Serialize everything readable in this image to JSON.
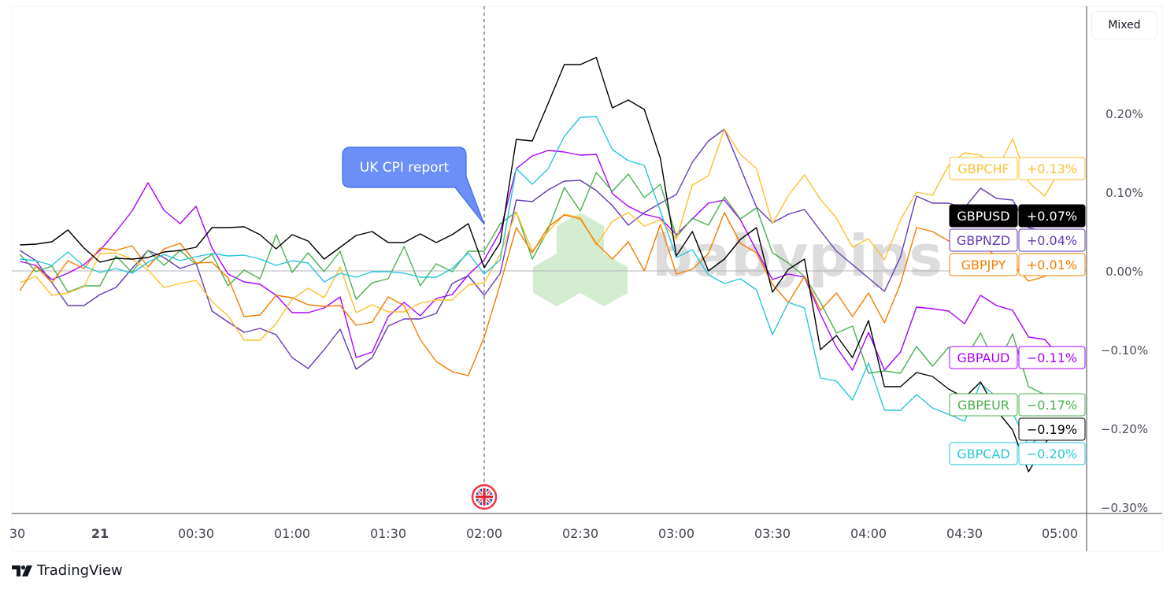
{
  "toolbar": {
    "scale_mode_label": "Mixed"
  },
  "branding": {
    "tradingview_label": "TradingView",
    "watermark": "babypips"
  },
  "annotation": {
    "label": "UK CPI report",
    "event_time": "02:00",
    "event_icon": "uk-flag-icon"
  },
  "chart_data": {
    "type": "line",
    "title": "",
    "xlabel": "",
    "ylabel": "",
    "ylim": [
      -0.31,
      0.34
    ],
    "y_unit": "%",
    "grid": false,
    "legend": "right-edge labels",
    "x_tick_labels": [
      "30",
      "21",
      "00:30",
      "01:00",
      "01:30",
      "02:00",
      "02:30",
      "03:00",
      "03:30",
      "04:00",
      "04:30",
      "05:00"
    ],
    "y_tick_labels": [
      "0.20%",
      "0.10%",
      "0.00%",
      "−0.10%",
      "−0.20%",
      "−0.30%"
    ],
    "y_ticks": [
      0.2,
      0.1,
      0.0,
      -0.1,
      -0.2,
      -0.3
    ],
    "x": [
      "23:35",
      "23:40",
      "23:45",
      "23:50",
      "23:55",
      "00:00",
      "00:05",
      "00:10",
      "00:15",
      "00:20",
      "00:25",
      "00:30",
      "00:35",
      "00:40",
      "00:45",
      "00:50",
      "00:55",
      "01:00",
      "01:05",
      "01:10",
      "01:15",
      "01:20",
      "01:25",
      "01:30",
      "01:35",
      "01:40",
      "01:45",
      "01:50",
      "01:55",
      "02:00",
      "02:05",
      "02:10",
      "02:15",
      "02:20",
      "02:25",
      "02:30",
      "02:35",
      "02:40",
      "02:45",
      "02:50",
      "02:55",
      "03:00",
      "03:05",
      "03:10",
      "03:15",
      "03:20",
      "03:25",
      "03:30",
      "03:35",
      "03:40",
      "03:45",
      "03:50",
      "03:55",
      "04:00",
      "04:05",
      "04:10",
      "04:15",
      "04:20",
      "04:25",
      "04:30",
      "04:35",
      "04:40",
      "04:45",
      "04:50",
      "04:55",
      "05:00"
    ],
    "series": [
      {
        "name": "GBPAUD",
        "color": "#aa00ff",
        "last_label": "−0.11%",
        "values": [
          0.012,
          0.007,
          -0.011,
          -0.003,
          0.008,
          0.026,
          0.05,
          0.076,
          0.112,
          0.077,
          0.06,
          0.082,
          0.029,
          -0.004,
          -0.014,
          -0.017,
          -0.031,
          -0.053,
          -0.053,
          -0.047,
          -0.033,
          -0.11,
          -0.103,
          -0.058,
          -0.04,
          -0.057,
          -0.035,
          -0.03,
          -0.005,
          0.014,
          0.05,
          0.13,
          0.146,
          0.153,
          0.151,
          0.147,
          0.148,
          0.098,
          0.082,
          0.072,
          0.067,
          0.046,
          0.066,
          0.086,
          0.09,
          0.065,
          0.026,
          -0.011,
          -0.004,
          -0.008,
          -0.055,
          -0.097,
          -0.126,
          -0.078,
          -0.126,
          -0.103,
          -0.046,
          -0.048,
          -0.051,
          -0.067,
          -0.031,
          -0.044,
          -0.05,
          -0.084,
          -0.087,
          -0.11
        ]
      },
      {
        "name": "GBPNZD",
        "color": "#673ab7",
        "last_label": "+0.04%",
        "values": [
          0.026,
          0.013,
          -0.015,
          -0.044,
          -0.044,
          -0.03,
          -0.021,
          0.003,
          0.026,
          0.017,
          0.003,
          0.01,
          -0.051,
          -0.065,
          -0.078,
          -0.073,
          -0.081,
          -0.11,
          -0.124,
          -0.1,
          -0.074,
          -0.125,
          -0.11,
          -0.07,
          -0.061,
          -0.061,
          -0.054,
          -0.016,
          -0.006,
          -0.031,
          -0.003,
          0.09,
          0.088,
          0.103,
          0.114,
          0.115,
          0.102,
          0.083,
          0.058,
          0.074,
          0.086,
          0.097,
          0.138,
          0.165,
          0.18,
          0.131,
          0.081,
          0.061,
          0.072,
          0.078,
          0.051,
          0.025,
          0.008,
          -0.009,
          -0.026,
          0.018,
          0.095,
          0.086,
          0.086,
          0.08,
          0.105,
          0.092,
          0.09,
          0.055,
          0.05,
          0.04
        ]
      },
      {
        "name": "GBPEUR",
        "color": "#4caf50",
        "last_label": "−0.17%",
        "values": [
          0.021,
          -0.001,
          0.006,
          -0.027,
          -0.019,
          -0.019,
          0.019,
          -0.002,
          0.026,
          0.007,
          0.026,
          0.008,
          0.021,
          -0.019,
          0.001,
          -0.01,
          0.046,
          -0.002,
          0.023,
          -0.001,
          0.025,
          -0.036,
          -0.015,
          -0.01,
          0.031,
          -0.019,
          0.009,
          -0.001,
          0.025,
          0.025,
          0.06,
          0.075,
          0.015,
          0.053,
          0.106,
          0.076,
          0.125,
          0.101,
          0.123,
          0.093,
          0.11,
          0.043,
          0.067,
          0.058,
          0.094,
          0.066,
          0.08,
          0.023,
          0.01,
          -0.007,
          -0.04,
          -0.079,
          -0.07,
          -0.13,
          -0.127,
          -0.13,
          -0.096,
          -0.121,
          -0.097,
          -0.113,
          -0.079,
          -0.121,
          -0.08,
          -0.147,
          -0.157,
          -0.17
        ]
      },
      {
        "name": "GBPCHF",
        "color": "#fbc02d",
        "last_label": "+0.13%",
        "values": [
          -0.015,
          -0.007,
          -0.031,
          -0.028,
          -0.02,
          0.022,
          0.023,
          0.015,
          0.001,
          -0.021,
          -0.016,
          -0.012,
          -0.039,
          -0.057,
          -0.088,
          -0.088,
          -0.067,
          -0.036,
          -0.022,
          -0.034,
          0.005,
          -0.053,
          -0.043,
          -0.052,
          -0.052,
          -0.041,
          -0.037,
          -0.037,
          -0.018,
          -0.015,
          0.021,
          0.075,
          0.025,
          0.05,
          0.072,
          0.068,
          0.033,
          0.063,
          0.074,
          0.057,
          0.065,
          0.04,
          0.109,
          0.121,
          0.18,
          0.148,
          0.13,
          0.06,
          0.096,
          0.122,
          0.091,
          0.067,
          0.03,
          0.041,
          0.014,
          0.065,
          0.1,
          0.096,
          0.134,
          0.15,
          0.147,
          0.127,
          0.168,
          0.113,
          0.095,
          0.13
        ]
      },
      {
        "name": "GBPJPY",
        "color": "#f57c00",
        "last_label": "+0.01%",
        "values": [
          -0.025,
          0.006,
          -0.015,
          0.013,
          0.003,
          0.029,
          0.026,
          0.032,
          0.005,
          0.028,
          0.035,
          0.01,
          0.011,
          -0.009,
          -0.058,
          -0.056,
          -0.031,
          -0.034,
          -0.043,
          -0.045,
          -0.044,
          -0.069,
          -0.065,
          -0.033,
          -0.044,
          -0.087,
          -0.115,
          -0.128,
          -0.133,
          -0.084,
          -0.017,
          0.055,
          0.023,
          0.056,
          0.071,
          0.066,
          0.035,
          0.015,
          0.037,
          0.0,
          0.059,
          -0.004,
          0.002,
          0.022,
          0.074,
          0.035,
          0.023,
          -0.017,
          -0.04,
          -0.007,
          -0.05,
          -0.028,
          -0.058,
          -0.028,
          -0.066,
          -0.016,
          0.055,
          0.05,
          0.038,
          0.037,
          0.035,
          0.018,
          0.009,
          -0.013,
          -0.007,
          0.01
        ]
      },
      {
        "name": "GBPCAD",
        "color": "#26c6da",
        "last_label": "−0.20%",
        "values": [
          0.015,
          0.013,
          0.007,
          0.024,
          0.006,
          -0.002,
          0.003,
          -0.003,
          0.011,
          0.021,
          0.013,
          0.018,
          0.022,
          0.019,
          0.02,
          0.015,
          0.007,
          0.013,
          0.01,
          -0.014,
          -0.003,
          -0.008,
          -0.001,
          -0.001,
          -0.003,
          -0.008,
          -0.008,
          0.003,
          0.023,
          -0.004,
          0.014,
          0.13,
          0.11,
          0.13,
          0.171,
          0.195,
          0.196,
          0.154,
          0.14,
          0.134,
          0.076,
          0.017,
          0.027,
          -0.005,
          -0.016,
          -0.01,
          -0.024,
          -0.081,
          -0.04,
          -0.047,
          -0.136,
          -0.14,
          -0.164,
          -0.117,
          -0.177,
          -0.177,
          -0.157,
          -0.174,
          -0.182,
          -0.191,
          -0.143,
          -0.16,
          -0.18,
          -0.222,
          -0.207,
          -0.2
        ]
      },
      {
        "name": "GBPUSD",
        "color": "#000000",
        "last_label": "−0.19%",
        "values": [
          0.033,
          0.034,
          0.037,
          0.052,
          0.029,
          0.011,
          0.016,
          0.015,
          0.017,
          0.024,
          0.026,
          0.03,
          0.055,
          0.055,
          0.056,
          0.046,
          0.028,
          0.046,
          0.038,
          0.015,
          0.03,
          0.045,
          0.05,
          0.036,
          0.036,
          0.047,
          0.036,
          0.046,
          0.06,
          0.004,
          0.036,
          0.167,
          0.165,
          0.213,
          0.262,
          0.262,
          0.271,
          0.207,
          0.217,
          0.205,
          0.143,
          0.019,
          0.05,
          0.0,
          0.015,
          0.04,
          0.055,
          -0.027,
          0.002,
          0.015,
          -0.1,
          -0.082,
          -0.11,
          -0.063,
          -0.147,
          -0.147,
          -0.129,
          -0.134,
          -0.15,
          -0.161,
          -0.141,
          -0.177,
          -0.202,
          -0.255,
          -0.22,
          -0.19
        ]
      }
    ],
    "price_labels": [
      {
        "name": "GBPCHF",
        "value": "+0.13%",
        "level": 0.13,
        "color": "#fbc02d",
        "style": "outline"
      },
      {
        "name": "GBPUSD",
        "value": "+0.07%",
        "level": 0.07,
        "color": "#000000",
        "style": "filled"
      },
      {
        "name": "GBPNZD",
        "value": "+0.04%",
        "level": 0.04,
        "color": "#673ab7",
        "style": "outline"
      },
      {
        "name": "GBPJPY",
        "value": "+0.01%",
        "level": 0.01,
        "color": "#f57c00",
        "style": "outline"
      },
      {
        "name": "GBPAUD",
        "value": "−0.11%",
        "level": -0.11,
        "color": "#aa00ff",
        "style": "outline"
      },
      {
        "name": "GBPEUR",
        "value": "−0.17%",
        "level": -0.17,
        "color": "#4caf50",
        "style": "outline"
      },
      {
        "name": "GBPCAD",
        "value": "−0.20%",
        "level": -0.2,
        "color": "#26c6da",
        "style": "outline"
      },
      {
        "name": "",
        "value": "−0.19%",
        "level": -0.19,
        "color": "#000000",
        "style": "outline"
      }
    ]
  }
}
